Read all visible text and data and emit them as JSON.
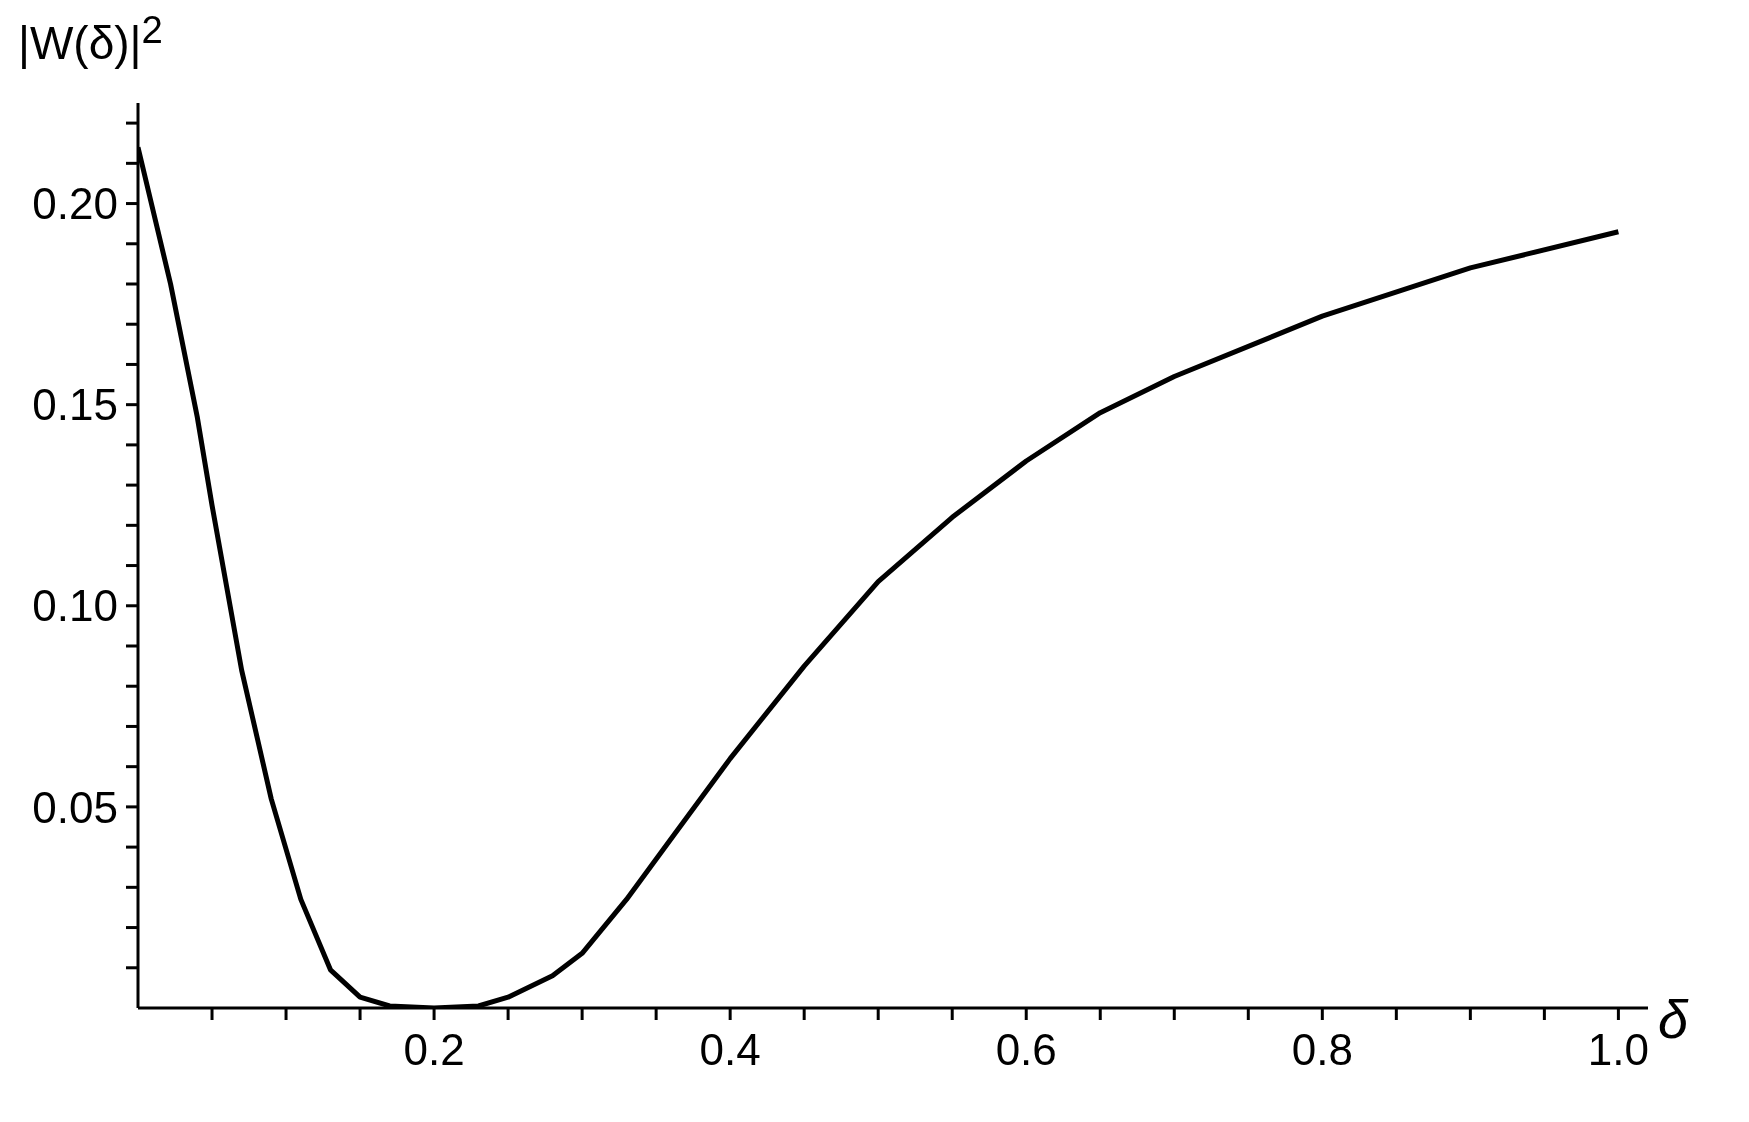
{
  "chart_data": {
    "type": "line",
    "xlabel": "δ",
    "ylabel": "|W(δ)|$^{2}$",
    "x": [
      0,
      0.022,
      0.04,
      0.05,
      0.07,
      0.09,
      0.11,
      0.13,
      0.15,
      0.17,
      0.2,
      0.23,
      0.25,
      0.28,
      0.3,
      0.33,
      0.36,
      0.4,
      0.45,
      0.5,
      0.55,
      0.6,
      0.65,
      0.7,
      0.8,
      0.9,
      1.0
    ],
    "series": [
      {
        "color": "#000000",
        "values": [
          0.214,
          0.18,
          0.147,
          0.125,
          0.084,
          0.052,
          0.027,
          0.0095,
          0.0027,
          0.0005,
          0,
          0.0005,
          0.0027,
          0.008,
          0.0136,
          0.027,
          0.042,
          0.062,
          0.085,
          0.106,
          0.122,
          0.136,
          0.148,
          0.157,
          0.172,
          0.184,
          0.193
        ]
      }
    ],
    "xlim": [
      0,
      1.02
    ],
    "ylim": [
      0,
      0.225
    ],
    "xticks": [
      {
        "value": 0.05,
        "label": null
      },
      {
        "value": 0.1,
        "label": null
      },
      {
        "value": 0.15,
        "label": null
      },
      0.2,
      {
        "value": 0.25,
        "label": null
      },
      {
        "value": 0.3,
        "label": null
      },
      {
        "value": 0.35,
        "label": null
      },
      0.4,
      {
        "value": 0.45,
        "label": null
      },
      {
        "value": 0.5,
        "label": null
      },
      {
        "value": 0.55,
        "label": null
      },
      0.6,
      {
        "value": 0.65,
        "label": null
      },
      {
        "value": 0.7,
        "label": null
      },
      {
        "value": 0.75,
        "label": null
      },
      0.8,
      {
        "value": 0.85,
        "label": null
      },
      {
        "value": 0.9,
        "label": null
      },
      {
        "value": 0.95,
        "label": null
      },
      {
        "value": 1.0,
        "label": "1.0"
      }
    ],
    "yticks": [
      {
        "value": 0.01,
        "label": null
      },
      {
        "value": 0.02,
        "label": null
      },
      {
        "value": 0.03,
        "label": null
      },
      {
        "value": 0.04,
        "label": null
      },
      0.05,
      {
        "value": 0.06,
        "label": null
      },
      {
        "value": 0.07,
        "label": null
      },
      {
        "value": 0.08,
        "label": null
      },
      {
        "value": 0.09,
        "label": null
      },
      {
        "value": 0.1,
        "label": "0.10"
      },
      {
        "value": 0.11,
        "label": null
      },
      {
        "value": 0.12,
        "label": null
      },
      {
        "value": 0.13,
        "label": null
      },
      {
        "value": 0.14,
        "label": null
      },
      0.15,
      {
        "value": 0.16,
        "label": null
      },
      {
        "value": 0.17,
        "label": null
      },
      {
        "value": 0.18,
        "label": null
      },
      {
        "value": 0.19,
        "label": null
      },
      {
        "value": 0.2,
        "label": "0.20"
      },
      {
        "value": 0.21,
        "label": null
      },
      {
        "value": 0.22,
        "label": null
      }
    ],
    "grid": false,
    "legend": false,
    "marker": "none",
    "line_style": "solid"
  }
}
